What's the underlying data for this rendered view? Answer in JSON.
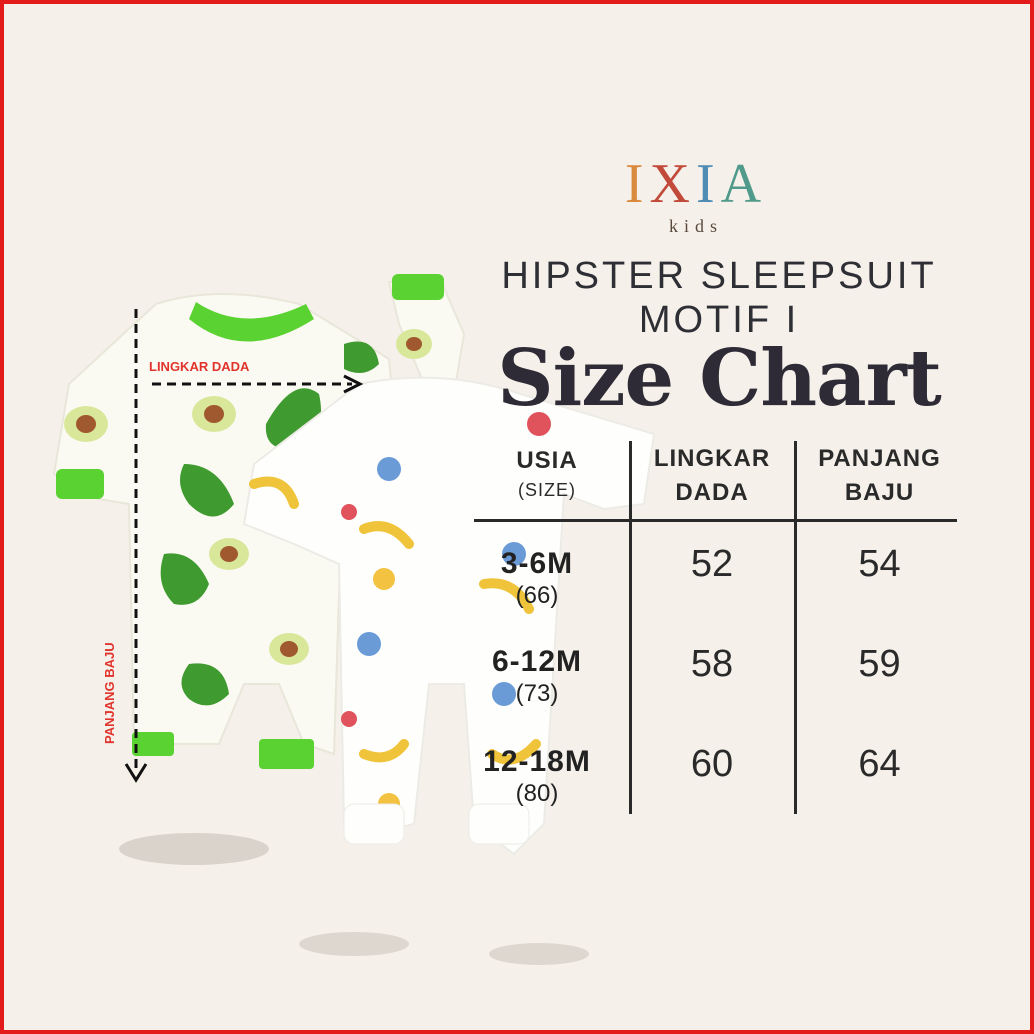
{
  "brand": {
    "letters": [
      {
        "char": "I",
        "color": "#d98a3d"
      },
      {
        "char": "X",
        "color": "#c24a3b"
      },
      {
        "char": "I",
        "color": "#4f8db5"
      },
      {
        "char": "A",
        "color": "#4f9a8a"
      }
    ],
    "sub": "kids"
  },
  "product_title": [
    "HIPSTER SLEEPSUIT",
    "MOTIF I"
  ],
  "chart_heading": "Size Chart",
  "annotations": {
    "chest": "LINGKAR DADA",
    "length": "PANJANG BAJU"
  },
  "table": {
    "headers": [
      {
        "main": "USIA",
        "sub": "(SIZE)"
      },
      {
        "main": "LINGKAR",
        "main2": "DADA"
      },
      {
        "main": "PANJANG",
        "main2": "BAJU"
      }
    ],
    "rows": [
      {
        "size": "3-6M",
        "code": "(66)",
        "chest": "52",
        "length": "54"
      },
      {
        "size": "6-12M",
        "code": "(73)",
        "chest": "58",
        "length": "59"
      },
      {
        "size": "12-18M",
        "code": "(80)",
        "chest": "60",
        "length": "64"
      }
    ]
  },
  "colors": {
    "border": "#e31b1b",
    "green_trim": "#5ad232",
    "avocado_dark": "#3f9a2f",
    "arrow_label": "#e0342d"
  }
}
